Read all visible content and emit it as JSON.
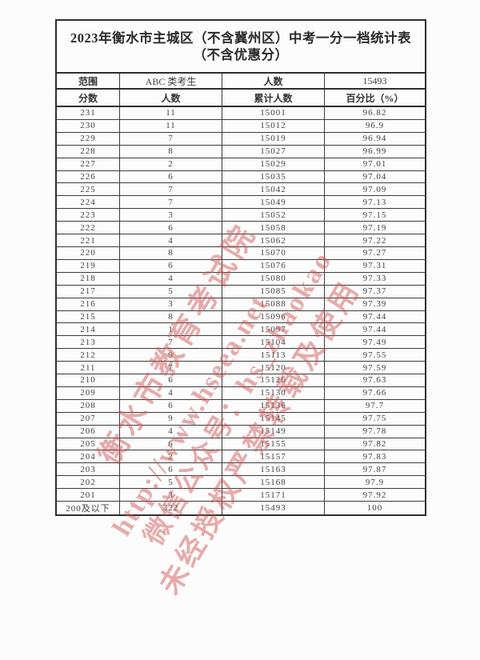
{
  "title": {
    "line1": "2023年衡水市主城区（不含冀州区）中考一分一档统计表",
    "line2": "（不含优惠分）"
  },
  "meta_row": {
    "range_label": "范围",
    "range_value": "ABC 类考生",
    "count_label": "人数",
    "count_value": "15493"
  },
  "header": {
    "score": "分数",
    "count": "人数",
    "cumulative": "累计人数",
    "percent": "百分比（%）"
  },
  "rows": [
    {
      "score": "231",
      "count": "11",
      "cumulative": "15001",
      "percent": "96.82"
    },
    {
      "score": "230",
      "count": "11",
      "cumulative": "15012",
      "percent": "96.9"
    },
    {
      "score": "229",
      "count": "7",
      "cumulative": "15019",
      "percent": "96.94"
    },
    {
      "score": "228",
      "count": "8",
      "cumulative": "15027",
      "percent": "96.99"
    },
    {
      "score": "227",
      "count": "2",
      "cumulative": "15029",
      "percent": "97.01"
    },
    {
      "score": "226",
      "count": "6",
      "cumulative": "15035",
      "percent": "97.04"
    },
    {
      "score": "225",
      "count": "7",
      "cumulative": "15042",
      "percent": "97.09"
    },
    {
      "score": "224",
      "count": "7",
      "cumulative": "15049",
      "percent": "97.13"
    },
    {
      "score": "223",
      "count": "3",
      "cumulative": "15052",
      "percent": "97.15"
    },
    {
      "score": "222",
      "count": "6",
      "cumulative": "15058",
      "percent": "97.19"
    },
    {
      "score": "221",
      "count": "4",
      "cumulative": "15062",
      "percent": "97.22"
    },
    {
      "score": "220",
      "count": "8",
      "cumulative": "15070",
      "percent": "97.27"
    },
    {
      "score": "219",
      "count": "6",
      "cumulative": "15076",
      "percent": "97.31"
    },
    {
      "score": "218",
      "count": "4",
      "cumulative": "15080",
      "percent": "97.33"
    },
    {
      "score": "217",
      "count": "5",
      "cumulative": "15085",
      "percent": "97.37"
    },
    {
      "score": "216",
      "count": "3",
      "cumulative": "15088",
      "percent": "97.39"
    },
    {
      "score": "215",
      "count": "8",
      "cumulative": "15096",
      "percent": "97.44"
    },
    {
      "score": "214",
      "count": "1",
      "cumulative": "15097",
      "percent": "97.44"
    },
    {
      "score": "213",
      "count": "7",
      "cumulative": "15104",
      "percent": "97.49"
    },
    {
      "score": "212",
      "count": "9",
      "cumulative": "15113",
      "percent": "97.55"
    },
    {
      "score": "211",
      "count": "7",
      "cumulative": "15120",
      "percent": "97.59"
    },
    {
      "score": "210",
      "count": "6",
      "cumulative": "15126",
      "percent": "97.63"
    },
    {
      "score": "209",
      "count": "4",
      "cumulative": "15130",
      "percent": "97.66"
    },
    {
      "score": "208",
      "count": "6",
      "cumulative": "15136",
      "percent": "97.7"
    },
    {
      "score": "207",
      "count": "9",
      "cumulative": "15145",
      "percent": "97.75"
    },
    {
      "score": "206",
      "count": "4",
      "cumulative": "15149",
      "percent": "97.78"
    },
    {
      "score": "205",
      "count": "6",
      "cumulative": "15155",
      "percent": "97.82"
    },
    {
      "score": "204",
      "count": "2",
      "cumulative": "15157",
      "percent": "97.83"
    },
    {
      "score": "203",
      "count": "6",
      "cumulative": "15163",
      "percent": "97.87"
    },
    {
      "score": "202",
      "count": "5",
      "cumulative": "15168",
      "percent": "97.9"
    },
    {
      "score": "201",
      "count": "3",
      "cumulative": "15171",
      "percent": "97.92"
    },
    {
      "score": "200及以下",
      "count": "322",
      "cumulative": "15493",
      "percent": "100"
    }
  ],
  "watermark": {
    "color": "#ce5454",
    "lines": [
      "衡水市教育考试院",
      "http://www.hseea.net",
      "微信公众号：hs_zhaokao",
      "未经授权严禁转载及使用"
    ]
  }
}
